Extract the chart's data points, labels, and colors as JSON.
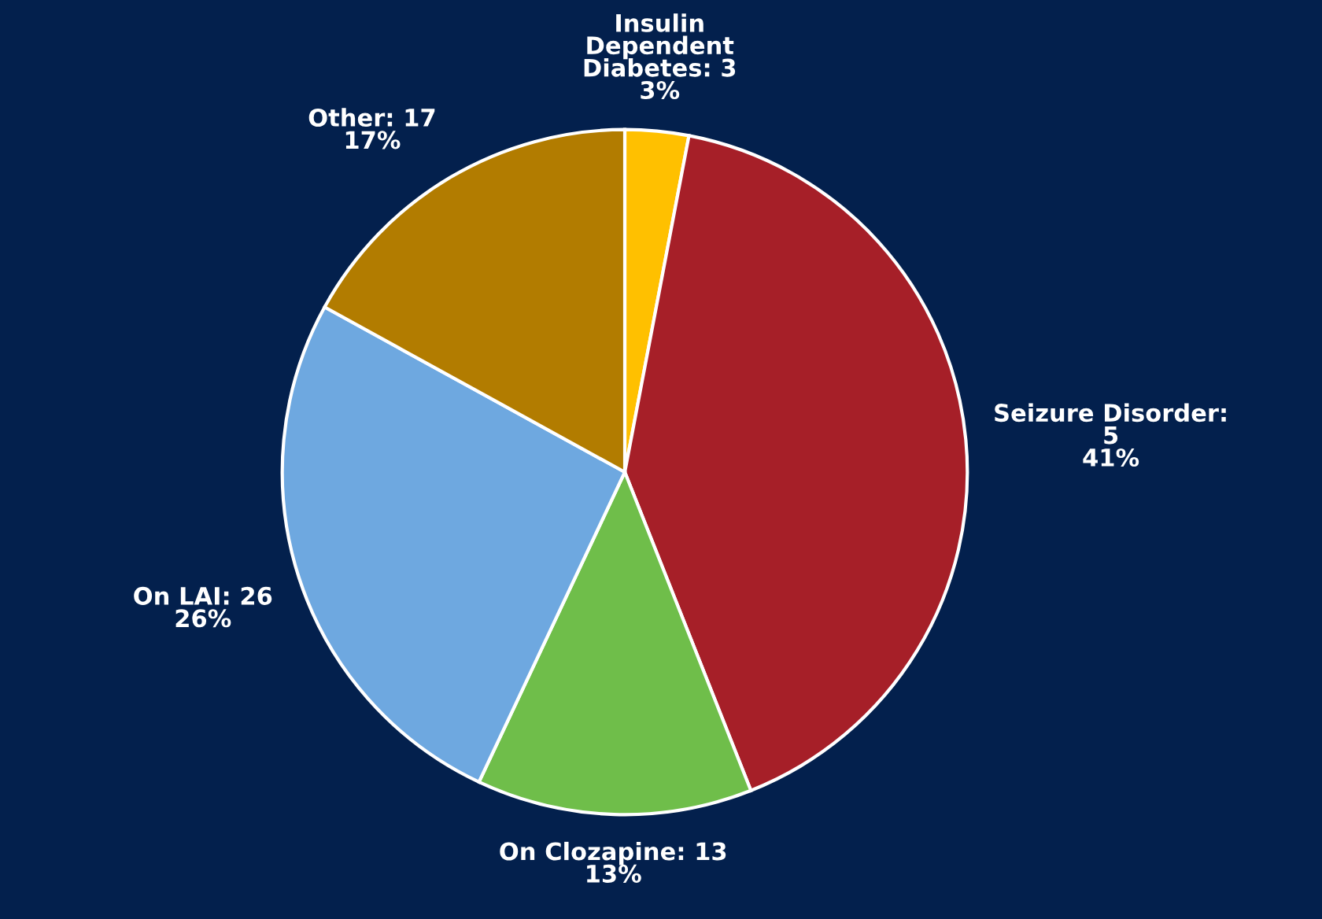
{
  "chart_data": {
    "type": "pie",
    "categories": [
      "Insulin\nDependent\nDiabetes: 3",
      "Seizure Disorder:\n5",
      "On Clozapine: 13",
      "On LAI: 26",
      "Other: 17"
    ],
    "values": [
      3,
      41,
      13,
      26,
      17
    ],
    "colors": [
      "#ffc000",
      "#a61f28",
      "#6fbe4a",
      "#6ea8e0",
      "#b27c00"
    ],
    "value_labels": [
      "3%",
      "41%",
      "13%",
      "26%",
      "17%"
    ],
    "legend": false
  }
}
